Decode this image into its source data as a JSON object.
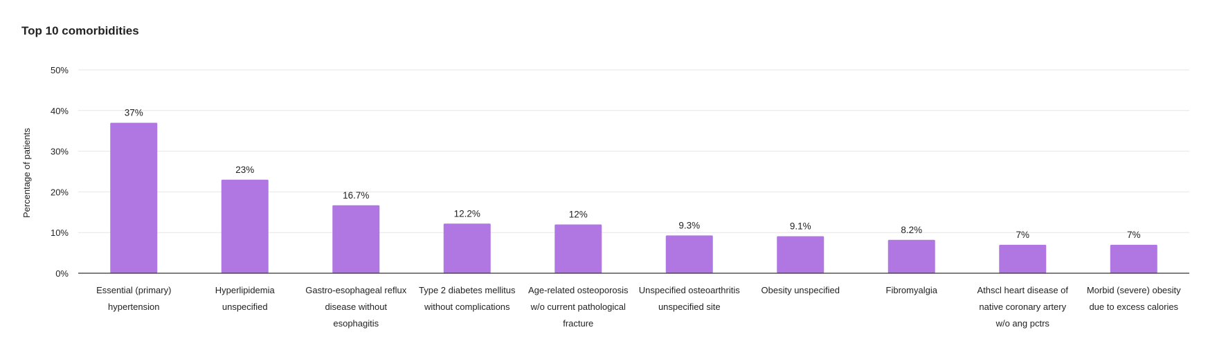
{
  "chart_data": {
    "type": "bar",
    "title": "Top 10 comorbidities",
    "ylabel": "Percentage of patients",
    "xlabel": "",
    "ylim": [
      0,
      50
    ],
    "yticks": [
      0,
      10,
      20,
      30,
      40,
      50
    ],
    "ytick_labels": [
      "0%",
      "10%",
      "20%",
      "30%",
      "40%",
      "50%"
    ],
    "grid": true,
    "bar_color": "#b077e3",
    "categories": [
      [
        "Essential (primary)",
        "hypertension"
      ],
      [
        "Hyperlipidemia",
        "unspecified"
      ],
      [
        "Gastro-esophageal reflux",
        "disease without",
        "esophagitis"
      ],
      [
        "Type 2 diabetes mellitus",
        "without complications"
      ],
      [
        "Age-related osteoporosis",
        "w/o current pathological",
        "fracture"
      ],
      [
        "Unspecified osteoarthritis",
        "unspecified site"
      ],
      [
        "Obesity unspecified"
      ],
      [
        "Fibromyalgia"
      ],
      [
        "Athscl heart disease of",
        "native coronary artery",
        "w/o ang pctrs"
      ],
      [
        "Morbid (severe) obesity",
        "due to excess calories"
      ]
    ],
    "values": [
      37,
      23,
      16.7,
      12.2,
      12,
      9.3,
      9.1,
      8.2,
      7,
      7
    ],
    "value_labels": [
      "37%",
      "23%",
      "16.7%",
      "12.2%",
      "12%",
      "9.3%",
      "9.1%",
      "8.2%",
      "7%",
      "7%"
    ]
  }
}
